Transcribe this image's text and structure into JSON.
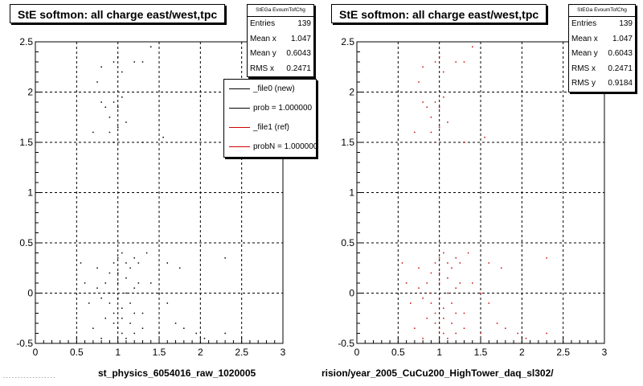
{
  "panels": [
    {
      "title": "StE softmon: all charge east/west,tpc",
      "stats": {
        "name": "StEGa EvoumTofChg",
        "rows": [
          {
            "label": "Entries",
            "value": "139"
          },
          {
            "label": "Mean x",
            "value": "1.047"
          },
          {
            "label": "Mean y",
            "value": "0.6043"
          },
          {
            "label": "RMS x",
            "value": "0.2471"
          },
          {
            "label": "RMS y",
            "value": "0.9184"
          }
        ]
      },
      "legend": [
        {
          "label": "_file0 (new)",
          "color": "#000000"
        },
        {
          "label": "prob = 1.000000",
          "color": "#000000"
        },
        {
          "label": "_file1 (ref)",
          "color": "#d00000"
        },
        {
          "label": "probN = 1.000000",
          "color": "#d00000"
        }
      ],
      "xtitle": "st_physics_6054016_raw_1020005",
      "footnote": "- - - - - -  -  - - - - - - - - - - -"
    },
    {
      "title": "StE softmon: all charge east/west,tpc",
      "stats": {
        "name": "StEGa EvoumTofChg",
        "rows": [
          {
            "label": "Entries",
            "value": "139"
          },
          {
            "label": "Mean x",
            "value": "1.047"
          },
          {
            "label": "Mean y",
            "value": "0.6043"
          },
          {
            "label": "RMS x",
            "value": "0.2471"
          },
          {
            "label": "RMS y",
            "value": "0.9184"
          }
        ]
      },
      "xtitle": "rision/year_2005_CuCu200_HighTower_daq_sl302/"
    }
  ],
  "chart_data": [
    {
      "type": "scatter",
      "title": "StE softmon: all charge east/west,tpc",
      "xlabel": "st_physics_6054016_raw_1020005",
      "xlim": [
        0,
        3
      ],
      "ylim": [
        -0.5,
        2.5
      ],
      "xticks": [
        "0",
        "0.5",
        "1",
        "1.5",
        "2",
        "2.5",
        "3"
      ],
      "yticks": [
        "-0.5",
        "0",
        "0.5",
        "1",
        "1.5",
        "2",
        "2.5"
      ],
      "grid": true,
      "series": [
        {
          "name": "_file0 (new)",
          "color": "#000000",
          "points": [
            [
              0.75,
              2.1
            ],
            [
              0.8,
              2.25
            ],
            [
              0.95,
              2.3
            ],
            [
              1.0,
              2.35
            ],
            [
              1.2,
              2.3
            ],
            [
              1.3,
              2.3
            ],
            [
              1.05,
              2.2
            ],
            [
              1.4,
              2.45
            ],
            [
              0.8,
              1.9
            ],
            [
              0.85,
              1.85
            ],
            [
              0.9,
              1.75
            ],
            [
              0.95,
              1.9
            ],
            [
              1.0,
              1.85
            ],
            [
              1.05,
              1.95
            ],
            [
              0.9,
              1.6
            ],
            [
              1.0,
              1.65
            ],
            [
              0.7,
              1.6
            ],
            [
              0.95,
              1.5
            ],
            [
              1.55,
              1.55
            ],
            [
              1.3,
              1.5
            ],
            [
              1.1,
              1.7
            ],
            [
              0.6,
              0.1
            ],
            [
              0.65,
              -0.1
            ],
            [
              0.75,
              0.05
            ],
            [
              0.8,
              -0.05
            ],
            [
              0.85,
              0.1
            ],
            [
              0.9,
              0.2
            ],
            [
              0.95,
              0.3
            ],
            [
              1.0,
              0.35
            ],
            [
              1.05,
              0.4
            ],
            [
              1.1,
              0.3
            ],
            [
              1.15,
              0.25
            ],
            [
              1.2,
              0.35
            ],
            [
              1.25,
              0.3
            ],
            [
              0.9,
              -0.1
            ],
            [
              0.95,
              -0.2
            ],
            [
              1.0,
              -0.05
            ],
            [
              1.05,
              -0.15
            ],
            [
              1.1,
              0.0
            ],
            [
              1.15,
              -0.1
            ],
            [
              1.2,
              0.05
            ],
            [
              1.3,
              -0.2
            ],
            [
              1.4,
              0.1
            ],
            [
              1.5,
              0.0
            ],
            [
              1.6,
              -0.1
            ],
            [
              1.7,
              -0.3
            ],
            [
              0.95,
              -0.3
            ],
            [
              1.0,
              -0.35
            ],
            [
              1.05,
              -0.4
            ],
            [
              1.1,
              -0.45
            ],
            [
              1.15,
              -0.3
            ],
            [
              1.2,
              -0.4
            ],
            [
              1.3,
              -0.35
            ],
            [
              0.7,
              -0.35
            ],
            [
              0.8,
              -0.45
            ],
            [
              1.5,
              -0.4
            ],
            [
              1.8,
              -0.35
            ],
            [
              1.95,
              -0.4
            ],
            [
              2.05,
              -0.45
            ],
            [
              2.3,
              -0.4
            ],
            [
              0.85,
              -0.25
            ],
            [
              0.9,
              0.0
            ],
            [
              1.0,
              0.1
            ],
            [
              1.0,
              0.2
            ],
            [
              1.05,
              -0.25
            ],
            [
              1.1,
              0.15
            ],
            [
              1.2,
              -0.2
            ],
            [
              1.25,
              0.1
            ],
            [
              1.75,
              0.25
            ],
            [
              0.55,
              0.3
            ],
            [
              1.6,
              0.3
            ],
            [
              2.3,
              0.35
            ],
            [
              1.35,
              0.4
            ],
            [
              0.75,
              0.25
            ]
          ]
        },
        {
          "name": "_file1 (ref)",
          "color": "#d00000",
          "points": []
        }
      ]
    },
    {
      "type": "scatter",
      "title": "StE softmon: all charge east/west,tpc",
      "xlabel": "rision/year_2005_CuCu200_HighTower_daq_sl302/",
      "xlim": [
        0,
        3
      ],
      "ylim": [
        -0.5,
        2.5
      ],
      "xticks": [
        "0",
        "0.5",
        "1",
        "1.5",
        "2",
        "2.5",
        "3"
      ],
      "yticks": [
        "-0.5",
        "0",
        "0.5",
        "1",
        "1.5",
        "2",
        "2.5"
      ],
      "grid": true,
      "series": [
        {
          "name": "_file1 (ref)",
          "color": "#d00000",
          "points": [
            [
              0.75,
              2.1
            ],
            [
              0.8,
              2.25
            ],
            [
              0.95,
              2.3
            ],
            [
              1.0,
              2.35
            ],
            [
              1.2,
              2.3
            ],
            [
              1.3,
              2.3
            ],
            [
              1.05,
              2.2
            ],
            [
              1.4,
              2.45
            ],
            [
              0.8,
              1.9
            ],
            [
              0.85,
              1.85
            ],
            [
              0.9,
              1.75
            ],
            [
              0.95,
              1.9
            ],
            [
              1.0,
              1.85
            ],
            [
              1.05,
              1.95
            ],
            [
              0.9,
              1.6
            ],
            [
              1.0,
              1.65
            ],
            [
              0.7,
              1.6
            ],
            [
              0.95,
              1.5
            ],
            [
              1.55,
              1.55
            ],
            [
              1.3,
              1.5
            ],
            [
              1.1,
              1.7
            ],
            [
              0.6,
              0.1
            ],
            [
              0.65,
              -0.1
            ],
            [
              0.75,
              0.05
            ],
            [
              0.8,
              -0.05
            ],
            [
              0.85,
              0.1
            ],
            [
              0.9,
              0.2
            ],
            [
              0.95,
              0.3
            ],
            [
              1.0,
              0.35
            ],
            [
              1.05,
              0.4
            ],
            [
              1.1,
              0.3
            ],
            [
              1.15,
              0.25
            ],
            [
              1.2,
              0.35
            ],
            [
              1.25,
              0.3
            ],
            [
              0.9,
              -0.1
            ],
            [
              0.95,
              -0.2
            ],
            [
              1.0,
              -0.05
            ],
            [
              1.05,
              -0.15
            ],
            [
              1.1,
              0.0
            ],
            [
              1.15,
              -0.1
            ],
            [
              1.2,
              0.05
            ],
            [
              1.3,
              -0.2
            ],
            [
              1.4,
              0.1
            ],
            [
              1.5,
              0.0
            ],
            [
              1.6,
              -0.1
            ],
            [
              1.7,
              -0.3
            ],
            [
              0.95,
              -0.3
            ],
            [
              1.0,
              -0.35
            ],
            [
              1.05,
              -0.4
            ],
            [
              1.1,
              -0.45
            ],
            [
              1.15,
              -0.3
            ],
            [
              1.2,
              -0.4
            ],
            [
              1.3,
              -0.35
            ],
            [
              0.7,
              -0.35
            ],
            [
              0.8,
              -0.45
            ],
            [
              1.5,
              -0.4
            ],
            [
              1.8,
              -0.35
            ],
            [
              1.95,
              -0.4
            ],
            [
              2.05,
              -0.45
            ],
            [
              2.3,
              -0.4
            ],
            [
              0.85,
              -0.25
            ],
            [
              0.9,
              0.0
            ],
            [
              1.0,
              0.1
            ],
            [
              1.0,
              0.2
            ],
            [
              1.05,
              -0.25
            ],
            [
              1.1,
              0.15
            ],
            [
              1.2,
              -0.2
            ],
            [
              1.25,
              0.1
            ],
            [
              1.75,
              0.25
            ],
            [
              0.55,
              0.3
            ],
            [
              1.6,
              0.3
            ],
            [
              2.3,
              0.35
            ],
            [
              1.35,
              0.4
            ],
            [
              0.75,
              0.25
            ]
          ]
        }
      ]
    }
  ]
}
